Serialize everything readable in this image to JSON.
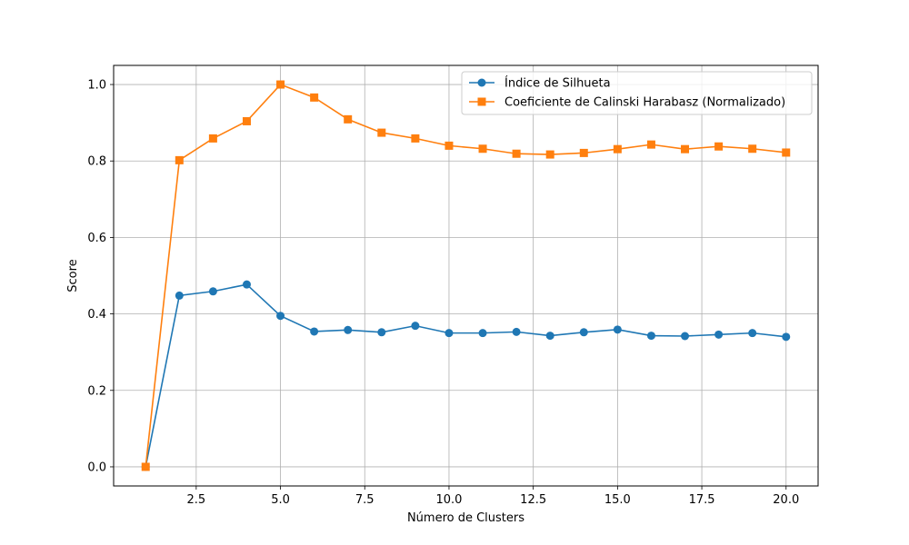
{
  "chart_data": {
    "type": "line",
    "xlabel": "Número de Clusters",
    "ylabel": "Score",
    "xlim": [
      0.05,
      20.95
    ],
    "ylim": [
      -0.05,
      1.05
    ],
    "xticks": [
      2.5,
      5.0,
      7.5,
      10.0,
      12.5,
      15.0,
      17.5,
      20.0
    ],
    "xtick_labels": [
      "2.5",
      "5.0",
      "7.5",
      "10.0",
      "12.5",
      "15.0",
      "17.5",
      "20.0"
    ],
    "yticks": [
      0.0,
      0.2,
      0.4,
      0.6,
      0.8,
      1.0
    ],
    "ytick_labels": [
      "0.0",
      "0.2",
      "0.4",
      "0.6",
      "0.8",
      "1.0"
    ],
    "grid": true,
    "legend_position": "top-right",
    "x": [
      1,
      2,
      3,
      4,
      5,
      6,
      7,
      8,
      9,
      10,
      11,
      12,
      13,
      14,
      15,
      16,
      17,
      18,
      19,
      20
    ],
    "series": [
      {
        "name": "Índice de Silhueta",
        "color": "#1f77b4",
        "marker": "circle",
        "values": [
          0.0,
          0.448,
          0.459,
          0.477,
          0.395,
          0.354,
          0.358,
          0.352,
          0.369,
          0.35,
          0.35,
          0.353,
          0.343,
          0.352,
          0.359,
          0.343,
          0.342,
          0.346,
          0.35,
          0.34
        ]
      },
      {
        "name": "Coeficiente de Calinski Harabasz (Normalizado)",
        "color": "#ff7f0e",
        "marker": "square",
        "values": [
          0.0,
          0.802,
          0.859,
          0.904,
          1.0,
          0.966,
          0.909,
          0.874,
          0.859,
          0.84,
          0.832,
          0.819,
          0.817,
          0.821,
          0.831,
          0.843,
          0.831,
          0.838,
          0.832,
          0.822
        ]
      }
    ]
  }
}
